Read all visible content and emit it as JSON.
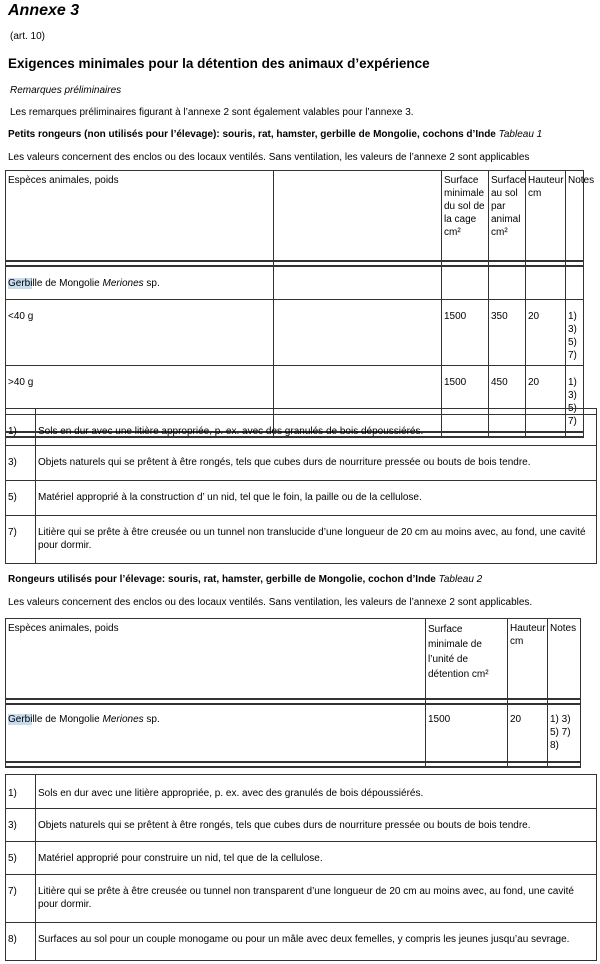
{
  "title": "Annexe 3",
  "article": "(art. 10)",
  "heading": "Exigences minimales pour la détention des animaux d’expérience",
  "prelim_label": "Remarques préliminaires",
  "prelim_text": "Les remarques préliminaires figurant à l’annexe 2 sont également valables pour l’annexe 3.",
  "t1": {
    "heading": "Petits rongeurs (non utilisés pour l’élevage): souris, rat, hamster, gerbille de Mongolie, cochons d’Inde",
    "tableau": "Tableau 1",
    "intro": "Les valeurs concernent des enclos ou des locaux ventilés. Sans ventilation, les valeurs de l’annexe 2 sont applicables",
    "headers": [
      "Espèces animales, poids",
      "",
      "Surface minimale du sol de la cage cm²",
      "Surface au sol par animal cm²",
      "Hauteur cm",
      "Notes"
    ],
    "species_hl": "Gerbi",
    "species_rest": "lle de Mongolie ",
    "species_latin": "Meriones",
    "species_sp": " sp.",
    "rows": [
      [
        "<40 g",
        "",
        "1500",
        "350",
        "20",
        "1) 3) 5) 7)"
      ],
      [
        ">40 g",
        "",
        "1500",
        "450",
        "20",
        "1) 3) 5) 7)"
      ]
    ],
    "notes": [
      [
        "1)",
        "Sols en dur avec une litière appropriée, p. ex. avec des granulés de bois dépoussiérés."
      ],
      [
        "3)",
        "Objets naturels qui se prêtent à être rongés, tels que cubes durs de nourriture pressée ou bouts de bois tendre."
      ],
      [
        "5)",
        "Matériel approprié à la construction d’ un nid, tel que le foin, la paille ou de la cellulose."
      ],
      [
        "7)",
        "Litière qui se prête à être creusée ou un tunnel non translucide d’une longueur de 20 cm au moins avec, au fond, une cavité pour dormir."
      ]
    ]
  },
  "t2": {
    "heading": "Rongeurs utilisés pour l’élevage: souris, rat, hamster, gerbille de Mongolie, cochon d’Inde",
    "tableau": "Tableau 2",
    "intro": "Les valeurs concernent des enclos ou des locaux ventilés. Sans ventilation, les valeurs de l’annexe 2 sont applicables.",
    "headers": [
      "Espèces animales, poids",
      "Surface minimale de l’unité de détention cm²",
      "Hauteur cm",
      "Notes"
    ],
    "row": [
      "1500",
      "20",
      "1) 3) 5) 7) 8)"
    ],
    "notes": [
      [
        "1)",
        "Sols en dur avec une litière appropriée, p. ex. avec des granulés de bois dépoussiérés."
      ],
      [
        "3)",
        "Objets naturels qui se prêtent à être rongés, tels que cubes durs de nourriture pressée ou bouts de bois tendre."
      ],
      [
        "5)",
        "Matériel approprié pour construire un nid, tel que de la cellulose."
      ],
      [
        "7)",
        "Litière qui se prête à être creusée ou tunnel non transparent d’une longueur de 20 cm au moins avec, au fond, une cavité pour dormir."
      ],
      [
        "8)",
        "Surfaces au sol pour un couple monogame ou pour un mâle avec deux femelles, y compris les jeunes jusqu’au sevrage."
      ]
    ]
  }
}
